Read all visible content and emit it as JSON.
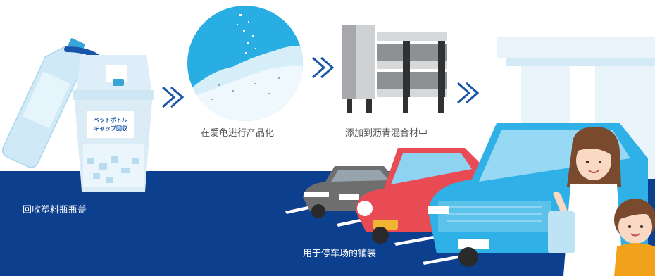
{
  "labels": {
    "recycle": "回收塑料瓶瓶盖",
    "crush": "在爱龟进行产品化",
    "asphalt": "添加到沥青混合材中",
    "parking": "用于停车场的铺装"
  },
  "bin_sign": {
    "line1": "ペットボトル",
    "line2": "キャップ回収"
  },
  "icons": [
    "bottle-icon",
    "recycle-bin-icon",
    "crushed-powder-icon",
    "asphalt-plant-icon",
    "parking-lot-icon",
    "people-icon"
  ],
  "colors": {
    "navy": "#0d3f8f",
    "sky": "#29aee3",
    "pale_blue": "#d6eef8",
    "red_car": "#e94b55",
    "blue_car": "#2fb0e6",
    "gray_car": "#6e6e6e",
    "arrow": "#1a56a8"
  }
}
